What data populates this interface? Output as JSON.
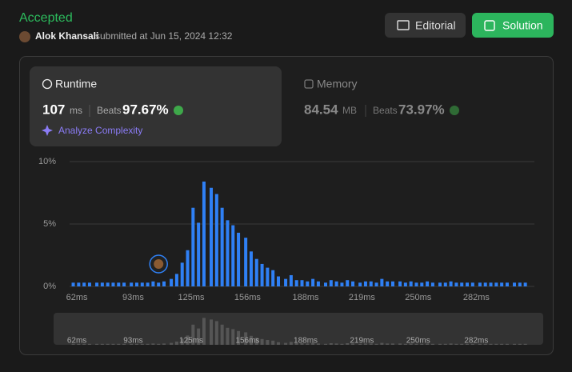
{
  "header": {
    "status": "Accepted",
    "user": "Alok Khansali",
    "submitted": "submitted at Jun 15, 2024 12:32",
    "buttons": [
      "Editorial",
      "Solution"
    ]
  },
  "runtime": {
    "title": "Runtime",
    "value": 107,
    "unit": "ms",
    "beats_label": "Beats",
    "beats": "97.67%",
    "action": "Analyze Complexity"
  },
  "memory": {
    "title": "Memory",
    "value": 84.54,
    "unit": "MB",
    "beats_label": "Beats",
    "beats": "73.97%"
  },
  "chart_data": {
    "type": "bar",
    "x": [
      60,
      63,
      66,
      69,
      73,
      76,
      79,
      82,
      85,
      88,
      92,
      95,
      98,
      101,
      104,
      107,
      110,
      114,
      117,
      120,
      123,
      126,
      129,
      132,
      136,
      139,
      142,
      145,
      148,
      151,
      155,
      158,
      161,
      164,
      167,
      170,
      173,
      177,
      180,
      183,
      186,
      189,
      192,
      195,
      199,
      202,
      205,
      208,
      211,
      214,
      218,
      221,
      224,
      227,
      230,
      233,
      236,
      240,
      243,
      246,
      249,
      252,
      255,
      258,
      262,
      265,
      268,
      271,
      274,
      277,
      280,
      284,
      287,
      290,
      293,
      296,
      299,
      303,
      306,
      309
    ],
    "values": [
      0.3,
      0.3,
      0.3,
      0.3,
      0.3,
      0.3,
      0.3,
      0.3,
      0.3,
      0.3,
      0.3,
      0.3,
      0.3,
      0.3,
      0.4,
      0.3,
      0.4,
      0.6,
      1.0,
      1.9,
      2.9,
      6.3,
      5.1,
      8.4,
      7.9,
      7.4,
      6.3,
      5.3,
      4.9,
      4.3,
      3.9,
      2.8,
      2.2,
      1.8,
      1.5,
      1.3,
      0.8,
      0.6,
      0.9,
      0.5,
      0.5,
      0.4,
      0.6,
      0.4,
      0.3,
      0.5,
      0.4,
      0.3,
      0.5,
      0.4,
      0.3,
      0.4,
      0.4,
      0.3,
      0.6,
      0.4,
      0.4,
      0.4,
      0.3,
      0.4,
      0.3,
      0.3,
      0.4,
      0.3,
      0.3,
      0.3,
      0.4,
      0.3,
      0.3,
      0.3,
      0.3,
      0.3,
      0.3,
      0.3,
      0.3,
      0.3,
      0.3,
      0.3,
      0.3,
      0.3
    ],
    "color": "#2f80f5",
    "xlim": [
      58,
      314
    ],
    "xticks": [
      {
        "value": 62,
        "label": "62ms"
      },
      {
        "value": 93,
        "label": "93ms"
      },
      {
        "value": 125,
        "label": "125ms"
      },
      {
        "value": 156,
        "label": "156ms"
      },
      {
        "value": 188,
        "label": "188ms"
      },
      {
        "value": 219,
        "label": "219ms"
      },
      {
        "value": 250,
        "label": "250ms"
      },
      {
        "value": 282,
        "label": "282ms"
      }
    ],
    "ylim": [
      0,
      10
    ],
    "yticks": [
      {
        "value": 0,
        "label": "0%"
      },
      {
        "value": 5,
        "label": "5%"
      },
      {
        "value": 10,
        "label": "10%"
      }
    ],
    "grid": true
  }
}
